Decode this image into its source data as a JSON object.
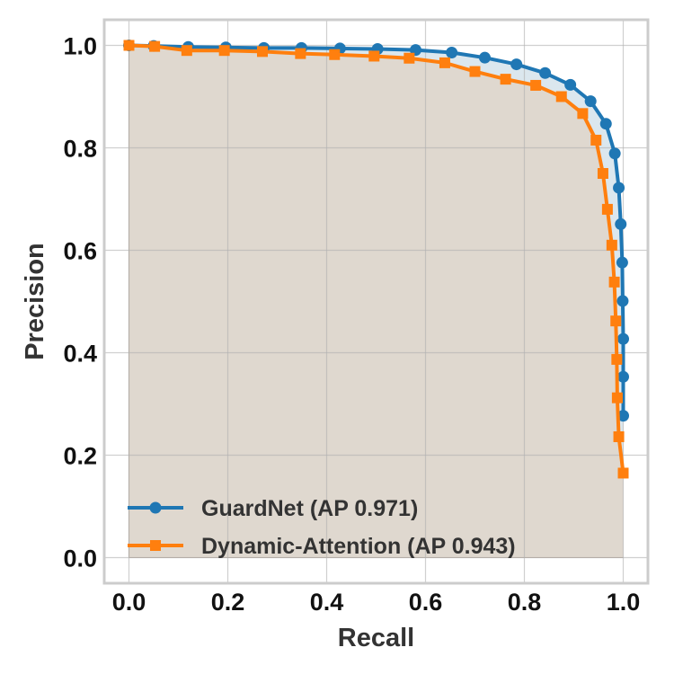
{
  "chart_data": {
    "type": "line",
    "title": "",
    "xlabel": "Recall",
    "ylabel": "Precision",
    "xlim": [
      -0.05,
      1.05
    ],
    "ylim": [
      -0.05,
      1.05
    ],
    "xticks": [
      "0.0",
      "0.2",
      "0.4",
      "0.6",
      "0.8",
      "1.0"
    ],
    "yticks": [
      "0.0",
      "0.2",
      "0.4",
      "0.6",
      "0.8",
      "1.0"
    ],
    "grid": true,
    "legend_position": "lower-left",
    "series": [
      {
        "name": "GuardNet (AP 0.971)",
        "color": "#1f77b4",
        "marker": "circle",
        "fill": "#dbe7ee",
        "x": [
          0.0,
          0.05,
          0.12,
          0.196,
          0.273,
          0.349,
          0.427,
          0.503,
          0.58,
          0.653,
          0.72,
          0.784,
          0.842,
          0.893,
          0.934,
          0.965,
          0.983,
          0.991,
          0.995,
          0.998,
          0.999,
          1.0,
          1.0,
          1.0
        ],
        "y": [
          1.0,
          0.999,
          0.997,
          0.996,
          0.995,
          0.995,
          0.994,
          0.993,
          0.991,
          0.986,
          0.976,
          0.963,
          0.946,
          0.923,
          0.891,
          0.847,
          0.789,
          0.722,
          0.651,
          0.576,
          0.501,
          0.427,
          0.353,
          0.277
        ]
      },
      {
        "name": "Dynamic-Attention (AP 0.943)",
        "color": "#ff7f0e",
        "marker": "square",
        "fill": "#dfd8cf",
        "x": [
          0.0,
          0.052,
          0.117,
          0.193,
          0.27,
          0.347,
          0.416,
          0.496,
          0.567,
          0.639,
          0.7,
          0.762,
          0.823,
          0.875,
          0.918,
          0.945,
          0.959,
          0.968,
          0.977,
          0.982,
          0.985,
          0.987,
          0.988,
          0.991,
          1.0
        ],
        "y": [
          1.0,
          0.998,
          0.99,
          0.99,
          0.988,
          0.984,
          0.982,
          0.979,
          0.975,
          0.966,
          0.949,
          0.934,
          0.922,
          0.9,
          0.867,
          0.815,
          0.75,
          0.68,
          0.61,
          0.538,
          0.462,
          0.387,
          0.312,
          0.236,
          0.165
        ]
      }
    ]
  }
}
